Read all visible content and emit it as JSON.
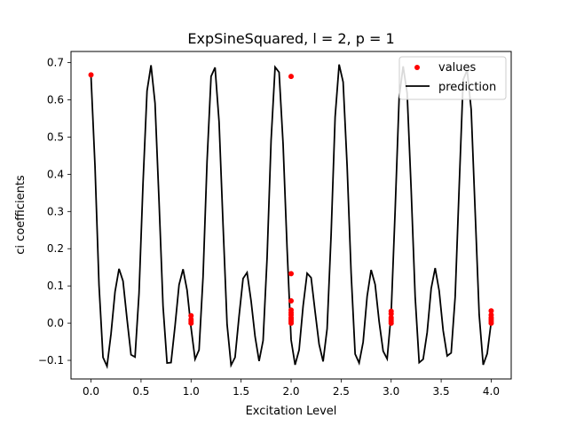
{
  "chart_data": {
    "type": "line",
    "title": "ExpSineSquared, l = 2, p = 1",
    "xlabel": "Excitation Level",
    "ylabel": "ci coefficients",
    "xlim": [
      -0.2,
      4.2
    ],
    "ylim": [
      -0.15,
      0.73
    ],
    "xticks": [
      0.0,
      0.5,
      1.0,
      1.5,
      2.0,
      2.5,
      3.0,
      3.5,
      4.0
    ],
    "xtick_labels": [
      "0.0",
      "0.5",
      "1.0",
      "1.5",
      "2.0",
      "2.5",
      "3.0",
      "3.5",
      "4.0"
    ],
    "yticks": [
      -0.1,
      0.0,
      0.1,
      0.2,
      0.3,
      0.4,
      0.5,
      0.6,
      0.7
    ],
    "ytick_labels": [
      "−0.1",
      "0.0",
      "0.1",
      "0.2",
      "0.3",
      "0.4",
      "0.5",
      "0.6",
      "0.7"
    ],
    "grid": false,
    "legend": {
      "position": "top-right",
      "entries": [
        "values",
        "prediction"
      ]
    },
    "series": [
      {
        "name": "values",
        "kind": "scatter",
        "color": "#ff0000",
        "x": [
          0.0,
          1.0,
          1.0,
          1.0,
          1.0,
          2.0,
          2.0,
          2.0,
          2.0,
          2.0,
          2.0,
          2.0,
          2.0,
          2.0,
          2.0,
          3.0,
          3.0,
          3.0,
          3.0,
          3.0,
          3.0,
          4.0,
          4.0,
          4.0,
          4.0,
          4.0,
          4.0
        ],
        "y": [
          0.667,
          0.02,
          0.01,
          0.005,
          0.0,
          0.663,
          0.133,
          0.06,
          0.035,
          0.028,
          0.022,
          0.015,
          0.01,
          0.005,
          0.0,
          0.032,
          0.025,
          0.015,
          0.01,
          0.005,
          0.0,
          0.033,
          0.022,
          0.015,
          0.01,
          0.005,
          0.0
        ]
      },
      {
        "name": "prediction",
        "kind": "line",
        "color": "#000000",
        "x": [
          0.0,
          0.04,
          0.08,
          0.12,
          0.16,
          0.2,
          0.24,
          0.28,
          0.32,
          0.36,
          0.4,
          0.44,
          0.48,
          0.52,
          0.56,
          0.6,
          0.64,
          0.68,
          0.72,
          0.76,
          0.8,
          0.84,
          0.88,
          0.92,
          0.96,
          1.0,
          1.04,
          1.08,
          1.12,
          1.16,
          1.2,
          1.24,
          1.28,
          1.32,
          1.36,
          1.4,
          1.44,
          1.48,
          1.52,
          1.56,
          1.6,
          1.64,
          1.68,
          1.72,
          1.76,
          1.8,
          1.84,
          1.88,
          1.92,
          1.96,
          2.0,
          2.04,
          2.08,
          2.12,
          2.16,
          2.2,
          2.24,
          2.28,
          2.32,
          2.36,
          2.4,
          2.44,
          2.48,
          2.52,
          2.56,
          2.6,
          2.64,
          2.68,
          2.72,
          2.76,
          2.8,
          2.84,
          2.88,
          2.92,
          2.96,
          3.0,
          3.04,
          3.08,
          3.12,
          3.16,
          3.2,
          3.24,
          3.28,
          3.32,
          3.36,
          3.4,
          3.44,
          3.48,
          3.52,
          3.56,
          3.6,
          3.64,
          3.68,
          3.72,
          3.76,
          3.8,
          3.84,
          3.88,
          3.92,
          3.96,
          4.0
        ],
        "y": [
          0.663,
          0.422,
          0.102,
          -0.092,
          -0.116,
          -0.029,
          0.084,
          0.146,
          0.113,
          0.011,
          -0.085,
          -0.091,
          0.08,
          0.376,
          0.624,
          0.693,
          0.591,
          0.328,
          0.045,
          -0.107,
          -0.106,
          -0.007,
          0.103,
          0.145,
          0.089,
          -0.012,
          -0.097,
          -0.072,
          0.125,
          0.435,
          0.663,
          0.687,
          0.541,
          0.263,
          -0.003,
          -0.113,
          -0.092,
          0.019,
          0.12,
          0.136,
          0.06,
          -0.036,
          -0.102,
          -0.047,
          0.176,
          0.491,
          0.688,
          0.674,
          0.481,
          0.2,
          -0.045,
          -0.112,
          -0.072,
          0.046,
          0.134,
          0.122,
          0.031,
          -0.057,
          -0.103,
          -0.015,
          0.238,
          0.554,
          0.695,
          0.648,
          0.422,
          0.134,
          -0.083,
          -0.107,
          -0.051,
          0.072,
          0.143,
          0.104,
          0.004,
          -0.075,
          -0.096,
          0.025,
          0.303,
          0.607,
          0.69,
          0.618,
          0.36,
          0.071,
          -0.106,
          -0.097,
          -0.025,
          0.093,
          0.148,
          0.087,
          -0.02,
          -0.088,
          -0.08,
          0.071,
          0.366,
          0.654,
          0.68,
          0.574,
          0.298,
          0.022,
          -0.112,
          -0.082,
          0.003
        ]
      }
    ]
  }
}
